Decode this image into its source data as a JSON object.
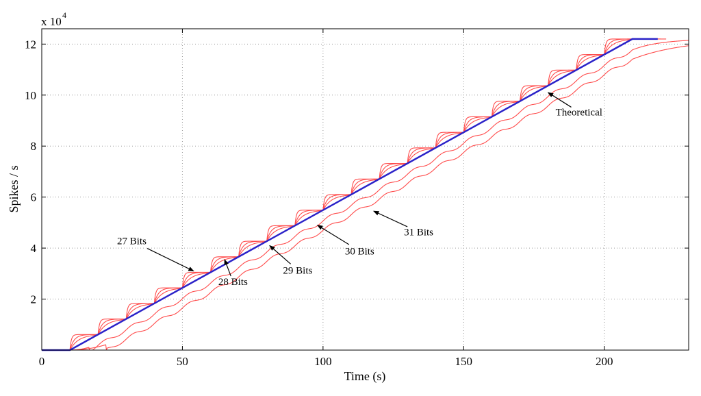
{
  "chart_data": {
    "type": "line",
    "title": "",
    "xlabel": "Time (s)",
    "ylabel": "Spikes / s",
    "y_multiplier_label": "x 10",
    "y_multiplier_exponent": "4",
    "xlim": [
      0,
      230
    ],
    "ylim": [
      0,
      126000
    ],
    "x_ticks": [
      0,
      50,
      100,
      150,
      200
    ],
    "y_ticks": [
      20000,
      40000,
      60000,
      80000,
      100000,
      120000
    ],
    "y_tick_labels": [
      "2",
      "4",
      "6",
      "8",
      "10",
      "12"
    ],
    "grid": true,
    "colors": {
      "theoretical": "#2b22c8",
      "quantized": "#ff4a4a"
    },
    "ramp": {
      "start_time": 10,
      "end_time": 210,
      "max_rate": 122000,
      "step_period": 10
    },
    "series": [
      {
        "label_text": "27 Bits",
        "lag": 0.5,
        "tail_end_time": 219,
        "style": "staircase"
      },
      {
        "label_text": "28 Bits",
        "lag": 1.5,
        "tail_end_time": 220,
        "style": "staircase"
      },
      {
        "label_text": "29 Bits",
        "lag": 3.0,
        "tail_end_time": 222,
        "style": "staircase"
      },
      {
        "label_text": "30 Bits",
        "lag": 7.0,
        "tail_end_time": 232,
        "style": "smooth"
      },
      {
        "label_text": "31 Bits",
        "lag": 13.0,
        "tail_end_time": 240,
        "style": "smooth"
      },
      {
        "label_text": "Theoretical",
        "lag": 0,
        "tail_end_time": 219,
        "style": "ideal"
      }
    ],
    "annotations": [
      {
        "text": "27 Bits",
        "text_x": 32,
        "text_y": 41500,
        "arrow_to_x": 54,
        "arrow_to_y": 31000
      },
      {
        "text": "28 Bits",
        "text_x": 68,
        "text_y": 25500,
        "arrow_to_x": 65,
        "arrow_to_y": 35500
      },
      {
        "text": "29 Bits",
        "text_x": 91,
        "text_y": 30000,
        "arrow_to_x": 81,
        "arrow_to_y": 41000
      },
      {
        "text": "30 Bits",
        "text_x": 113,
        "text_y": 37500,
        "arrow_to_x": 98,
        "arrow_to_y": 49000
      },
      {
        "text": "31 Bits",
        "text_x": 134,
        "text_y": 45000,
        "arrow_to_x": 118,
        "arrow_to_y": 54500
      },
      {
        "text": "Theoretical",
        "text_x": 191,
        "text_y": 92000,
        "arrow_to_x": 180,
        "arrow_to_y": 101000
      }
    ]
  }
}
